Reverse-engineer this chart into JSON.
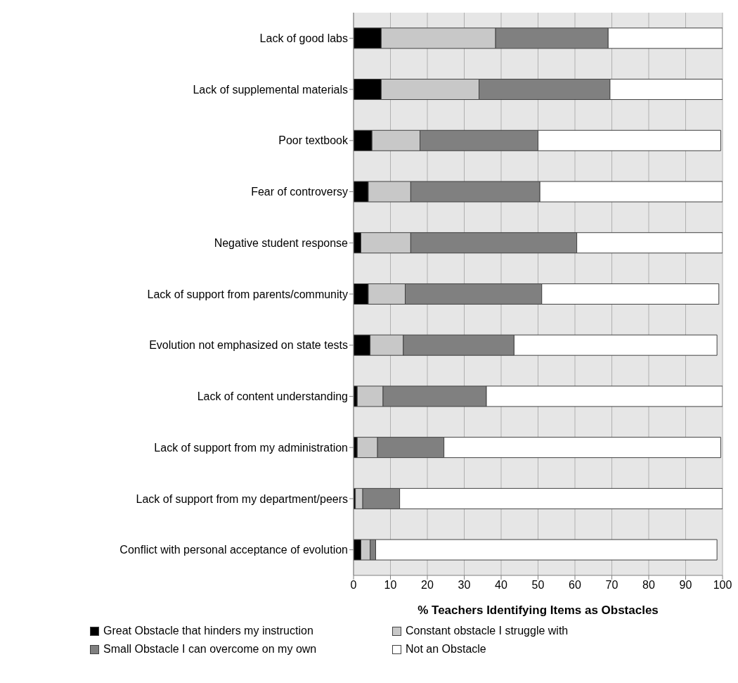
{
  "chart_data": {
    "type": "bar",
    "orientation": "horizontal",
    "stacked": true,
    "xlabel": "% Teachers Identifying Items as Obstacles",
    "categories": [
      "Lack of good labs",
      "Lack of supplemental materials",
      "Poor textbook",
      "Fear of controversy",
      "Negative student response",
      "Lack of support from parents/community",
      "Evolution not emphasized on state tests",
      "Lack of content understanding",
      "Lack of support from my administration",
      "Lack of support from my department/peers",
      "Conflict with personal acceptance of evolution"
    ],
    "series": [
      {
        "name": "Great Obstacle that hinders my instruction",
        "color": "#000000",
        "values": [
          7.5,
          7.5,
          5,
          4,
          2,
          4,
          4.5,
          1,
          1,
          0.5,
          2
        ]
      },
      {
        "name": "Constant obstacle I struggle with",
        "color": "#c8c8c8",
        "values": [
          31,
          26.5,
          13,
          11.5,
          13.5,
          10,
          9,
          7,
          5.5,
          2,
          2.5
        ]
      },
      {
        "name": "Small Obstacle I can overcome on my own",
        "color": "#808080",
        "values": [
          30.5,
          35.5,
          32,
          35,
          45,
          37,
          30,
          28,
          18,
          10,
          1.5
        ]
      },
      {
        "name": "Not an Obstacle",
        "color": "#ffffff",
        "values": [
          31,
          30.5,
          49.5,
          49.5,
          39.5,
          48,
          55,
          64,
          75,
          87.5,
          92.5
        ]
      }
    ],
    "xlim": [
      0,
      100
    ],
    "xticks": [
      0,
      10,
      20,
      30,
      40,
      50,
      60,
      70,
      80,
      90,
      100
    ],
    "grid": "x",
    "legend": "bottom"
  }
}
